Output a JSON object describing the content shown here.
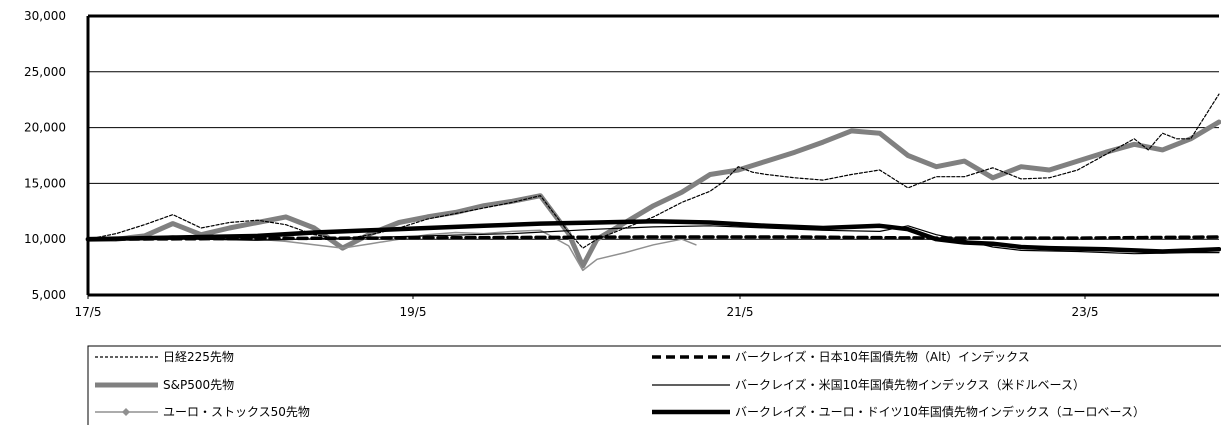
{
  "chart_data": {
    "type": "line",
    "x_ticks": [
      "17/5",
      "19/5",
      "21/5",
      "23/5"
    ],
    "y_ticks": [
      "5,000",
      "10,000",
      "15,000",
      "20,000",
      "25,000",
      "30,000"
    ],
    "ylim": [
      5000,
      30000
    ],
    "xlim": [
      0,
      80
    ],
    "grid": "horizontal",
    "legend_placement": "bottom",
    "series": [
      {
        "name": "日経225先物",
        "style": "dashed-thin",
        "color": "#000000",
        "x": [
          0,
          2,
          4,
          6,
          8,
          10,
          12,
          14,
          16,
          18,
          20,
          22,
          24,
          26,
          28,
          30,
          32,
          34,
          35,
          36,
          38,
          40,
          42,
          44,
          45,
          46,
          47,
          48,
          50,
          52,
          54,
          56,
          58,
          60,
          62,
          64,
          66,
          68,
          70,
          72,
          74,
          75,
          76,
          77,
          78,
          79,
          80
        ],
        "y": [
          10000,
          10500,
          11300,
          12200,
          11000,
          11500,
          11700,
          11300,
          10400,
          10000,
          10400,
          11000,
          11800,
          12300,
          12800,
          13300,
          13900,
          10600,
          9200,
          10000,
          11000,
          12000,
          13300,
          14300,
          15200,
          16500,
          16000,
          15800,
          15500,
          15300,
          15800,
          16200,
          14600,
          15600,
          15600,
          16400,
          15400,
          15500,
          16200,
          17600,
          19000,
          18000,
          19500,
          19000,
          19000,
          21000,
          23000
        ]
      },
      {
        "name": "S&P500先物",
        "style": "thick-gray",
        "color": "#808080",
        "x": [
          0,
          2,
          4,
          6,
          8,
          10,
          12,
          14,
          16,
          18,
          20,
          22,
          24,
          26,
          28,
          30,
          32,
          34,
          35,
          36,
          38,
          40,
          42,
          44,
          46,
          48,
          50,
          52,
          54,
          56,
          58,
          60,
          62,
          64,
          66,
          68,
          70,
          72,
          74,
          76,
          78,
          80
        ],
        "y": [
          10000,
          10000,
          10300,
          11400,
          10400,
          11000,
          11500,
          12000,
          11000,
          9200,
          10500,
          11500,
          12000,
          12400,
          13000,
          13400,
          13900,
          10500,
          7600,
          10000,
          11500,
          13000,
          14200,
          15800,
          16200,
          17000,
          17800,
          18700,
          19700,
          19500,
          17500,
          16500,
          17000,
          15500,
          16500,
          16200,
          17000,
          17800,
          18500,
          18000,
          19000,
          20500
        ]
      },
      {
        "name": "ユーロ・ストックス50先物",
        "style": "thin-gray-markers",
        "color": "#808080",
        "x": [
          0,
          2,
          4,
          6,
          8,
          10,
          12,
          14,
          16,
          18,
          20,
          22,
          24,
          26,
          28,
          30,
          32,
          34,
          35,
          36,
          38,
          40,
          42,
          43
        ],
        "y": [
          10000,
          9900,
          10100,
          10300,
          10000,
          10200,
          10000,
          9800,
          9500,
          9200,
          9600,
          10000,
          10400,
          10600,
          10500,
          10700,
          10800,
          9400,
          7200,
          8200,
          8800,
          9500,
          10000,
          9500
        ]
      },
      {
        "name": "バークレイズ・日本10年国債先物（Alt）インデックス",
        "style": "thick-dashed",
        "color": "#000000",
        "x": [
          0,
          10,
          20,
          30,
          40,
          50,
          60,
          70,
          80
        ],
        "y": [
          10000,
          10050,
          10100,
          10150,
          10200,
          10200,
          10100,
          10100,
          10200
        ]
      },
      {
        "name": "バークレイズ・米国10年国債先物インデックス（米ドルベース）",
        "style": "thin-solid",
        "color": "#000000",
        "x": [
          0,
          6,
          12,
          18,
          24,
          30,
          36,
          40,
          44,
          48,
          52,
          56,
          58,
          60,
          62,
          64,
          66,
          70,
          74,
          78,
          80
        ],
        "y": [
          10000,
          10050,
          9900,
          10100,
          10300,
          10500,
          10900,
          11100,
          11200,
          11000,
          10800,
          10700,
          11200,
          10400,
          9900,
          9300,
          9000,
          8900,
          8700,
          8800,
          8800
        ]
      },
      {
        "name": "バークレイズ・ユーロ・ドイツ10年国債先物インデックス（ユーロベース）",
        "style": "thick-solid",
        "color": "#000000",
        "x": [
          0,
          4,
          8,
          12,
          16,
          20,
          24,
          28,
          32,
          36,
          40,
          44,
          48,
          52,
          56,
          58,
          60,
          62,
          64,
          66,
          68,
          72,
          76,
          80
        ],
        "y": [
          10000,
          10100,
          10200,
          10300,
          10600,
          10800,
          11000,
          11200,
          11400,
          11500,
          11600,
          11500,
          11200,
          11000,
          11200,
          10900,
          10000,
          9700,
          9600,
          9300,
          9200,
          9100,
          8900,
          9100
        ]
      }
    ]
  },
  "legend": {
    "left": [
      "日経225先物",
      "S&P500先物",
      "ユーロ・ストックス50先物"
    ],
    "right": [
      "バークレイズ・日本10年国債先物（Alt）インデックス",
      "バークレイズ・米国10年国債先物インデックス（米ドルベース）",
      "バークレイズ・ユーロ・ドイツ10年国債先物インデックス（ユーロベース）"
    ]
  }
}
